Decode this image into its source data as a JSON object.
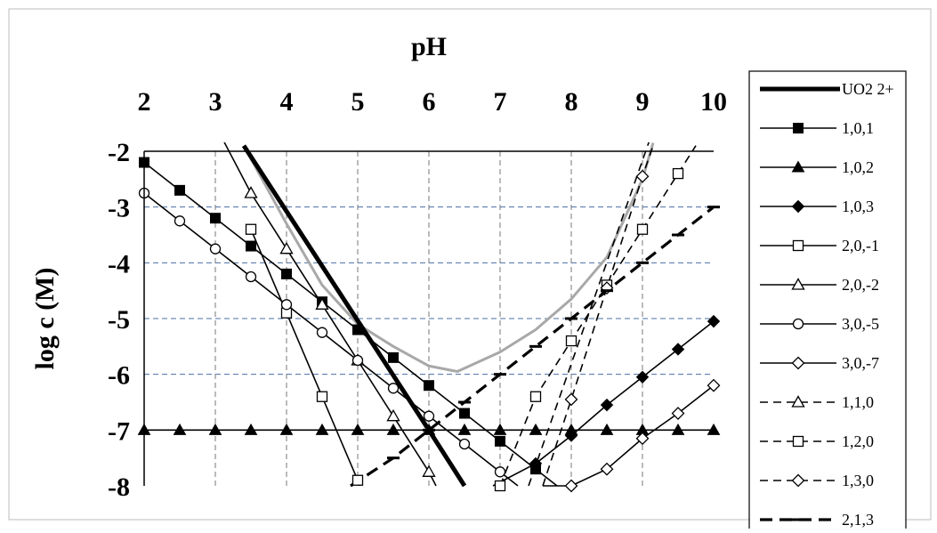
{
  "chart_data": {
    "type": "line",
    "title": "",
    "xlabel": "pH",
    "ylabel": "log c (M)",
    "xlim": [
      2,
      10
    ],
    "ylim": [
      -8,
      -2
    ],
    "x_ticks": [
      "2",
      "3",
      "4",
      "5",
      "6",
      "7",
      "8",
      "9",
      "10"
    ],
    "y_ticks": [
      "-2",
      "-3",
      "-4",
      "-5",
      "-6",
      "-7",
      "-8"
    ],
    "x_axis_position": "top",
    "grid": true,
    "legend_position": "right",
    "series": [
      {
        "name": "UO2 2+",
        "style": "solid-thick",
        "marker": "none",
        "points": [
          [
            3.4,
            -1.9
          ],
          [
            6.0,
            -7.0
          ],
          [
            6.5,
            -8.0
          ]
        ]
      },
      {
        "name": "1,0,1",
        "style": "solid",
        "marker": "filled-square",
        "points": [
          [
            2,
            -2.2
          ],
          [
            2.5,
            -2.7
          ],
          [
            3,
            -3.2
          ],
          [
            3.5,
            -3.7
          ],
          [
            4,
            -4.2
          ],
          [
            4.5,
            -4.7
          ],
          [
            5,
            -5.2
          ],
          [
            5.5,
            -5.7
          ],
          [
            6,
            -6.2
          ],
          [
            6.5,
            -6.7
          ],
          [
            7,
            -7.2
          ],
          [
            7.5,
            -7.7
          ],
          [
            7.8,
            -8.0
          ]
        ]
      },
      {
        "name": "1,0,2",
        "style": "solid",
        "marker": "filled-triangle",
        "points": [
          [
            2,
            -7.0
          ],
          [
            2.5,
            -7.0
          ],
          [
            3,
            -7.0
          ],
          [
            3.5,
            -7.0
          ],
          [
            4,
            -7.0
          ],
          [
            4.5,
            -7.0
          ],
          [
            5,
            -7.0
          ],
          [
            5.5,
            -7.0
          ],
          [
            6,
            -7.0
          ],
          [
            6.5,
            -7.0
          ],
          [
            7,
            -7.0
          ],
          [
            7.5,
            -7.0
          ],
          [
            8,
            -7.0
          ],
          [
            8.5,
            -7.0
          ],
          [
            9,
            -7.0
          ],
          [
            9.5,
            -7.0
          ],
          [
            10,
            -7.0
          ]
        ]
      },
      {
        "name": "1,0,3",
        "style": "solid",
        "marker": "filled-diamond",
        "points": [
          [
            6.9,
            -8.0
          ],
          [
            7.5,
            -7.6
          ],
          [
            8,
            -7.1
          ],
          [
            8.5,
            -6.55
          ],
          [
            9,
            -6.05
          ],
          [
            9.5,
            -5.55
          ],
          [
            10,
            -5.05
          ]
        ]
      },
      {
        "name": "2,0,-1",
        "style": "solid",
        "marker": "open-square",
        "points": [
          [
            3.5,
            -3.4
          ],
          [
            4,
            -4.9
          ],
          [
            4.5,
            -6.4
          ],
          [
            5,
            -7.9
          ],
          [
            5.03,
            -8.0
          ]
        ]
      },
      {
        "name": "2,0,-2",
        "style": "solid",
        "marker": "open-triangle",
        "points": [
          [
            2.7,
            -0.8
          ],
          [
            3.5,
            -2.75
          ],
          [
            4,
            -3.75
          ],
          [
            4.5,
            -4.75
          ],
          [
            5,
            -5.75
          ],
          [
            5.5,
            -6.75
          ],
          [
            6,
            -7.75
          ],
          [
            6.1,
            -8.0
          ]
        ]
      },
      {
        "name": "3,0,-5",
        "style": "solid",
        "marker": "open-circle",
        "points": [
          [
            2,
            -2.75
          ],
          [
            2.5,
            -3.25
          ],
          [
            3,
            -3.75
          ],
          [
            3.5,
            -4.25
          ],
          [
            4,
            -4.75
          ],
          [
            4.5,
            -5.25
          ],
          [
            5,
            -5.75
          ],
          [
            5.5,
            -6.25
          ],
          [
            6,
            -6.75
          ],
          [
            6.5,
            -7.25
          ],
          [
            7,
            -7.75
          ],
          [
            7.25,
            -8.0
          ]
        ]
      },
      {
        "name": "3,0,-7",
        "style": "solid",
        "marker": "open-diamond",
        "points": [
          [
            7.6,
            -8.0
          ],
          [
            8,
            -8.0
          ],
          [
            8.5,
            -7.7
          ],
          [
            9,
            -7.15
          ],
          [
            9.5,
            -6.7
          ],
          [
            10,
            -6.2
          ]
        ]
      },
      {
        "name": "1,1,0",
        "style": "dashed",
        "marker": "open-triangle",
        "points": [
          [
            7.4,
            -8.0
          ],
          [
            9.1,
            -1.8
          ]
        ]
      },
      {
        "name": "1,2,0",
        "style": "dashed",
        "marker": "open-square",
        "points": [
          [
            7.0,
            -8.0
          ],
          [
            7.5,
            -6.4
          ],
          [
            8,
            -5.4
          ],
          [
            8.5,
            -4.4
          ],
          [
            9,
            -3.4
          ],
          [
            9.5,
            -2.4
          ],
          [
            9.75,
            -1.9
          ]
        ]
      },
      {
        "name": "1,3,0",
        "style": "dashed",
        "marker": "open-diamond",
        "points": [
          [
            7.6,
            -8.0
          ],
          [
            8,
            -6.45
          ],
          [
            8.5,
            -4.45
          ],
          [
            9,
            -2.45
          ],
          [
            9.15,
            -1.9
          ]
        ]
      },
      {
        "name": "2,1,3",
        "style": "dashed-thick",
        "marker": "dash",
        "points": [
          [
            4.9,
            -8.0
          ],
          [
            5.5,
            -7.5
          ],
          [
            6,
            -7.0
          ],
          [
            6.5,
            -6.5
          ],
          [
            7,
            -6.0
          ],
          [
            7.5,
            -5.5
          ],
          [
            8,
            -5.0
          ],
          [
            8.5,
            -4.5
          ],
          [
            9,
            -4.0
          ],
          [
            9.5,
            -3.5
          ],
          [
            10,
            -3.0
          ]
        ]
      },
      {
        "name": "",
        "style": "solid-light",
        "marker": "none",
        "points": [
          [
            3.4,
            -1.9
          ],
          [
            4,
            -3.3
          ],
          [
            4.5,
            -4.4
          ],
          [
            5,
            -5.1
          ],
          [
            5.5,
            -5.5
          ],
          [
            6,
            -5.85
          ],
          [
            6.4,
            -5.95
          ],
          [
            7,
            -5.6
          ],
          [
            7.5,
            -5.2
          ],
          [
            8,
            -4.65
          ],
          [
            8.5,
            -3.9
          ],
          [
            9,
            -2.5
          ],
          [
            9.15,
            -1.85
          ]
        ]
      }
    ]
  }
}
